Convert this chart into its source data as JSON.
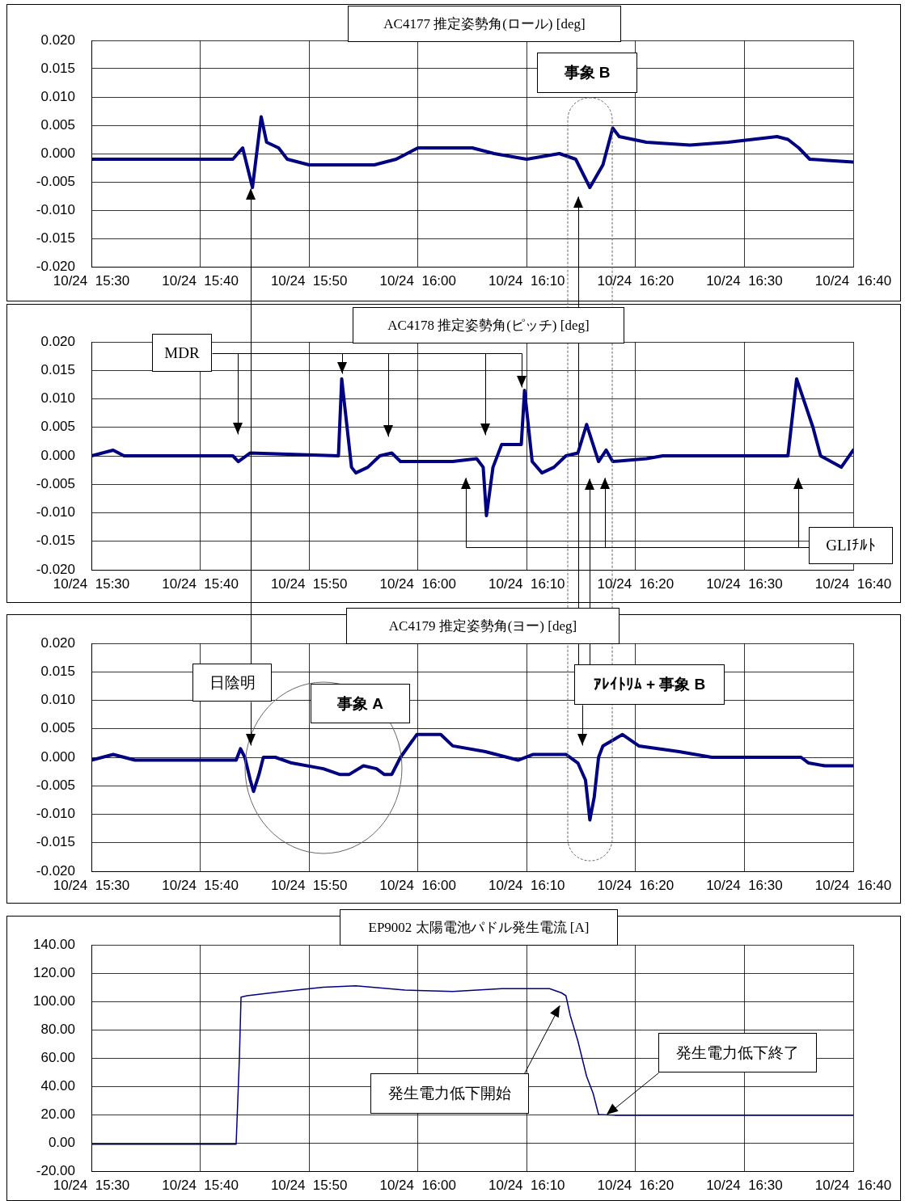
{
  "chart_data": [
    {
      "type": "line",
      "title": "AC4177 推定姿勢角(ロール) [deg]",
      "color": "#000080",
      "grid": true,
      "marker": "none",
      "x": [
        "--10-24T15:30",
        "--10-24T15:35",
        "--10-24T15:40",
        "--10-24T15:43",
        "--10-24T15:43:54",
        "--10-24T15:44:48",
        "--10-24T15:45:36",
        "--10-24T15:46:06",
        "--10-24T15:47:12",
        "--10-24T15:48",
        "--10-24T15:50",
        "--10-24T15:56",
        "--10-24T15:58",
        "--10-24T16:00",
        "--10-24T16:05",
        "--10-24T16:07",
        "--10-24T16:10",
        "--10-24T16:13",
        "--10-24T16:14:30",
        "--10-24T16:15:48",
        "--10-24T16:17",
        "--10-24T16:17:54",
        "--10-24T16:18:30",
        "--10-24T16:21",
        "--10-24T16:25",
        "--10-24T16:28:30",
        "--10-24T16:33",
        "--10-24T16:34",
        "--10-24T16:35",
        "--10-24T16:36",
        "--10-24T16:40"
      ],
      "values": [
        -0.001,
        -0.001,
        -0.001,
        -0.001,
        0.001,
        -0.006,
        0.0065,
        0.002,
        0.001,
        -0.001,
        -0.002,
        -0.002,
        -0.001,
        0.001,
        0.001,
        0,
        -0.001,
        0,
        -0.001,
        -0.006,
        -0.002,
        0.0045,
        0.003,
        0.002,
        0.0015,
        0.002,
        0.003,
        0.0025,
        0.001,
        -0.001,
        -0.0015
      ],
      "xlim": [
        "--10-24T15:30",
        "--10-24T16:40"
      ],
      "xticks": [
        {
          "value": "--10-24T15:30",
          "label": "10/24  15:30"
        },
        {
          "value": "--10-24T15:40",
          "label": "10/24  15:40"
        },
        {
          "value": "--10-24T15:50",
          "label": "10/24  15:50"
        },
        {
          "value": "--10-24T16:00",
          "label": "10/24  16:00"
        },
        {
          "value": "--10-24T16:10",
          "label": "10/24  16:10"
        },
        {
          "value": "--10-24T16:20",
          "label": "10/24  16:20"
        },
        {
          "value": "--10-24T16:30",
          "label": "10/24  16:30"
        },
        {
          "value": "--10-24T16:40",
          "label": "10/24  16:40"
        }
      ],
      "ylim": [
        -0.02,
        0.02
      ],
      "yticks": [
        {
          "value": -0.02,
          "label": "-0.020"
        },
        {
          "value": -0.015,
          "label": "-0.015"
        },
        {
          "value": -0.01,
          "label": "-0.010"
        },
        {
          "value": -0.005,
          "label": "-0.005"
        },
        {
          "value": 0,
          "label": "0.000"
        },
        {
          "value": 0.005,
          "label": "0.005"
        },
        {
          "value": 0.01,
          "label": "0.010"
        },
        {
          "value": 0.015,
          "label": "0.015"
        },
        {
          "value": 0.02,
          "label": "0.020"
        }
      ],
      "annotations": [
        "事象 B"
      ]
    },
    {
      "type": "line",
      "title": "AC4178 推定姿勢角(ピッチ) [deg]",
      "color": "#000080",
      "grid": true,
      "marker": "none",
      "x": [
        "--10-24T15:30",
        "--10-24T15:32",
        "--10-24T15:33",
        "--10-24T15:43",
        "--10-24T15:43:30",
        "--10-24T15:44:36",
        "--10-24T15:52:42",
        "--10-24T15:53",
        "--10-24T15:53:54",
        "--10-24T15:54:18",
        "--10-24T15:55:24",
        "--10-24T15:56:30",
        "--10-24T15:57:36",
        "--10-24T15:58:24",
        "--10-24T16:03:12",
        "--10-24T16:05:24",
        "--10-24T16:06",
        "--10-24T16:06:18",
        "--10-24T16:06:54",
        "--10-24T16:07:42",
        "--10-24T16:09:30",
        "--10-24T16:09:48",
        "--10-24T16:10:30",
        "--10-24T16:11:24",
        "--10-24T16:12:30",
        "--10-24T16:13:36",
        "--10-24T16:14:42",
        "--10-24T16:15:30",
        "--10-24T16:16:36",
        "--10-24T16:17:18",
        "--10-24T16:17:54",
        "--10-24T16:21",
        "--10-24T16:22:30",
        "--10-24T16:34",
        "--10-24T16:34:48",
        "--10-24T16:36:18",
        "--10-24T16:37",
        "--10-24T16:38:54",
        "--10-24T16:40"
      ],
      "values": [
        0,
        0.001,
        0,
        0,
        -0.001,
        0.0005,
        0,
        0.0135,
        -0.002,
        -0.003,
        -0.002,
        0,
        0.0005,
        -0.001,
        -0.001,
        -0.0005,
        -0.002,
        -0.0105,
        -0.002,
        0.002,
        0.002,
        0.0115,
        -0.001,
        -0.003,
        -0.002,
        0,
        0.0005,
        0.0055,
        -0.001,
        0.001,
        -0.001,
        -0.0005,
        0,
        0,
        0.0135,
        0.005,
        0,
        -0.002,
        0.001
      ],
      "xlim": [
        "--10-24T15:30",
        "--10-24T16:40"
      ],
      "xticks": [
        {
          "value": "--10-24T15:30",
          "label": "10/24  15:30"
        },
        {
          "value": "--10-24T15:40",
          "label": "10/24  15:40"
        },
        {
          "value": "--10-24T15:50",
          "label": "10/24  15:50"
        },
        {
          "value": "--10-24T16:00",
          "label": "10/24  16:00"
        },
        {
          "value": "--10-24T16:10",
          "label": "10/24  16:10"
        },
        {
          "value": "--10-24T16:20",
          "label": "10/24  16:20"
        },
        {
          "value": "--10-24T16:30",
          "label": "10/24  16:30"
        },
        {
          "value": "--10-24T16:40",
          "label": "10/24  16:40"
        }
      ],
      "ylim": [
        -0.02,
        0.02
      ],
      "yticks": [
        {
          "value": -0.02,
          "label": "-0.020"
        },
        {
          "value": -0.015,
          "label": "-0.015"
        },
        {
          "value": -0.01,
          "label": "-0.010"
        },
        {
          "value": -0.005,
          "label": "-0.005"
        },
        {
          "value": 0,
          "label": "0.000"
        },
        {
          "value": 0.005,
          "label": "0.005"
        },
        {
          "value": 0.01,
          "label": "0.010"
        },
        {
          "value": 0.015,
          "label": "0.015"
        },
        {
          "value": 0.02,
          "label": "0.020"
        }
      ],
      "annotations": [
        "MDR",
        "GLIﾁﾙﾄ"
      ]
    },
    {
      "type": "line",
      "title": "AC4179 推定姿勢角(ヨー) [deg]",
      "color": "#000080",
      "grid": true,
      "marker": "none",
      "x": [
        "--10-24T15:30",
        "--10-24T15:32",
        "--10-24T15:34",
        "--10-24T15:43:18",
        "--10-24T15:43:42",
        "--10-24T15:44:06",
        "--10-24T15:44:36",
        "--10-24T15:44:54",
        "--10-24T15:45:24",
        "--10-24T15:45:48",
        "--10-24T15:46:54",
        "--10-24T15:48:24",
        "--10-24T15:51:18",
        "--10-24T15:52:48",
        "--10-24T15:53:42",
        "--10-24T15:55",
        "--10-24T15:56:12",
        "--10-24T15:56:54",
        "--10-24T15:57:36",
        "--10-24T15:58:24",
        "--10-24T15:59:54",
        "--10-24T16:02:06",
        "--10-24T16:03:12",
        "--10-24T16:06:12",
        "--10-24T16:09:12",
        "--10-24T16:10:36",
        "--10-24T16:13:36",
        "--10-24T16:14:42",
        "--10-24T16:15:24",
        "--10-24T16:15:48",
        "--10-24T16:16:12",
        "--10-24T16:16:36",
        "--10-24T16:17",
        "--10-24T16:18:48",
        "--10-24T16:20:18",
        "--10-24T16:24",
        "--10-24T16:27",
        "--10-24T16:35:12",
        "--10-24T16:35:54",
        "--10-24T16:37:24",
        "--10-24T16:40"
      ],
      "values": [
        -0.0005,
        0.0005,
        -0.0005,
        -0.0005,
        0.0015,
        0,
        -0.004,
        -0.006,
        -0.003,
        0,
        0,
        -0.001,
        -0.002,
        -0.003,
        -0.003,
        -0.0015,
        -0.002,
        -0.003,
        -0.003,
        0,
        0.004,
        0.004,
        0.002,
        0.001,
        -0.0005,
        0.0005,
        0.0005,
        -0.001,
        -0.004,
        -0.011,
        -0.007,
        0,
        0.002,
        0.004,
        0.002,
        0.001,
        0,
        0,
        -0.001,
        -0.0015,
        -0.0015
      ],
      "xlim": [
        "--10-24T15:30",
        "--10-24T16:40"
      ],
      "xticks": [
        {
          "value": "--10-24T15:30",
          "label": "10/24  15:30"
        },
        {
          "value": "--10-24T15:40",
          "label": "10/24  15:40"
        },
        {
          "value": "--10-24T15:50",
          "label": "10/24  15:50"
        },
        {
          "value": "--10-24T16:00",
          "label": "10/24  16:00"
        },
        {
          "value": "--10-24T16:10",
          "label": "10/24  16:10"
        },
        {
          "value": "--10-24T16:20",
          "label": "10/24  16:20"
        },
        {
          "value": "--10-24T16:30",
          "label": "10/24  16:30"
        },
        {
          "value": "--10-24T16:40",
          "label": "10/24  16:40"
        }
      ],
      "ylim": [
        -0.02,
        0.02
      ],
      "yticks": [
        {
          "value": -0.02,
          "label": "-0.020"
        },
        {
          "value": -0.015,
          "label": "-0.015"
        },
        {
          "value": -0.01,
          "label": "-0.010"
        },
        {
          "value": -0.005,
          "label": "-0.005"
        },
        {
          "value": 0,
          "label": "0.000"
        },
        {
          "value": 0.005,
          "label": "0.005"
        },
        {
          "value": 0.01,
          "label": "0.010"
        },
        {
          "value": 0.015,
          "label": "0.015"
        },
        {
          "value": 0.02,
          "label": "0.020"
        }
      ],
      "annotations": [
        "日陰明",
        "事象 A",
        "ｱﾚｲﾄﾘﾑ + 事象 B"
      ]
    },
    {
      "type": "line",
      "title": "EP9002 太陽電池パドル発生電流 [A]",
      "color": "#000080",
      "grid": true,
      "marker": "none",
      "x": [
        "--10-24T15:30",
        "--10-24T15:43:18",
        "--10-24T15:43:36",
        "--10-24T15:43:45",
        "--10-24T15:44:18",
        "--10-24T15:47:36",
        "--10-24T15:51:18",
        "--10-24T15:54:18",
        "--10-24T15:58:48",
        "--10-24T16:03:12",
        "--10-24T16:07:42",
        "--10-24T16:12:06",
        "--10-24T16:13:12",
        "--10-24T16:13:36",
        "--10-24T16:14",
        "--10-24T16:14:42",
        "--10-24T16:15:30",
        "--10-24T16:16:06",
        "--10-24T16:16:36",
        "--10-24T16:18:06",
        "--10-24T16:40"
      ],
      "values": [
        -1,
        -1,
        60,
        103,
        104,
        107,
        110,
        111,
        108,
        107,
        109,
        109,
        106,
        104,
        90,
        72,
        47,
        35,
        20,
        19.5,
        19.5
      ],
      "xlim": [
        "--10-24T15:30",
        "--10-24T16:40"
      ],
      "xticks": [
        {
          "value": "--10-24T15:30",
          "label": "10/24  15:30"
        },
        {
          "value": "--10-24T15:40",
          "label": "10/24  15:40"
        },
        {
          "value": "--10-24T15:50",
          "label": "10/24  15:50"
        },
        {
          "value": "--10-24T16:00",
          "label": "10/24  16:00"
        },
        {
          "value": "--10-24T16:10",
          "label": "10/24  16:10"
        },
        {
          "value": "--10-24T16:20",
          "label": "10/24  16:20"
        },
        {
          "value": "--10-24T16:30",
          "label": "10/24  16:30"
        },
        {
          "value": "--10-24T16:40",
          "label": "10/24  16:40"
        }
      ],
      "ylim": [
        -20,
        140
      ],
      "yticks": [
        {
          "value": -20,
          "label": "-20.00"
        },
        {
          "value": 0,
          "label": "0.00"
        },
        {
          "value": 20,
          "label": "20.00"
        },
        {
          "value": 40,
          "label": "40.00"
        },
        {
          "value": 60,
          "label": "60.00"
        },
        {
          "value": 80,
          "label": "80.00"
        },
        {
          "value": 100,
          "label": "100.00"
        },
        {
          "value": 120,
          "label": "120.00"
        },
        {
          "value": 140,
          "label": "140.00"
        }
      ],
      "annotations": [
        "発生電力低下開始",
        "発生電力低下終了"
      ]
    }
  ]
}
